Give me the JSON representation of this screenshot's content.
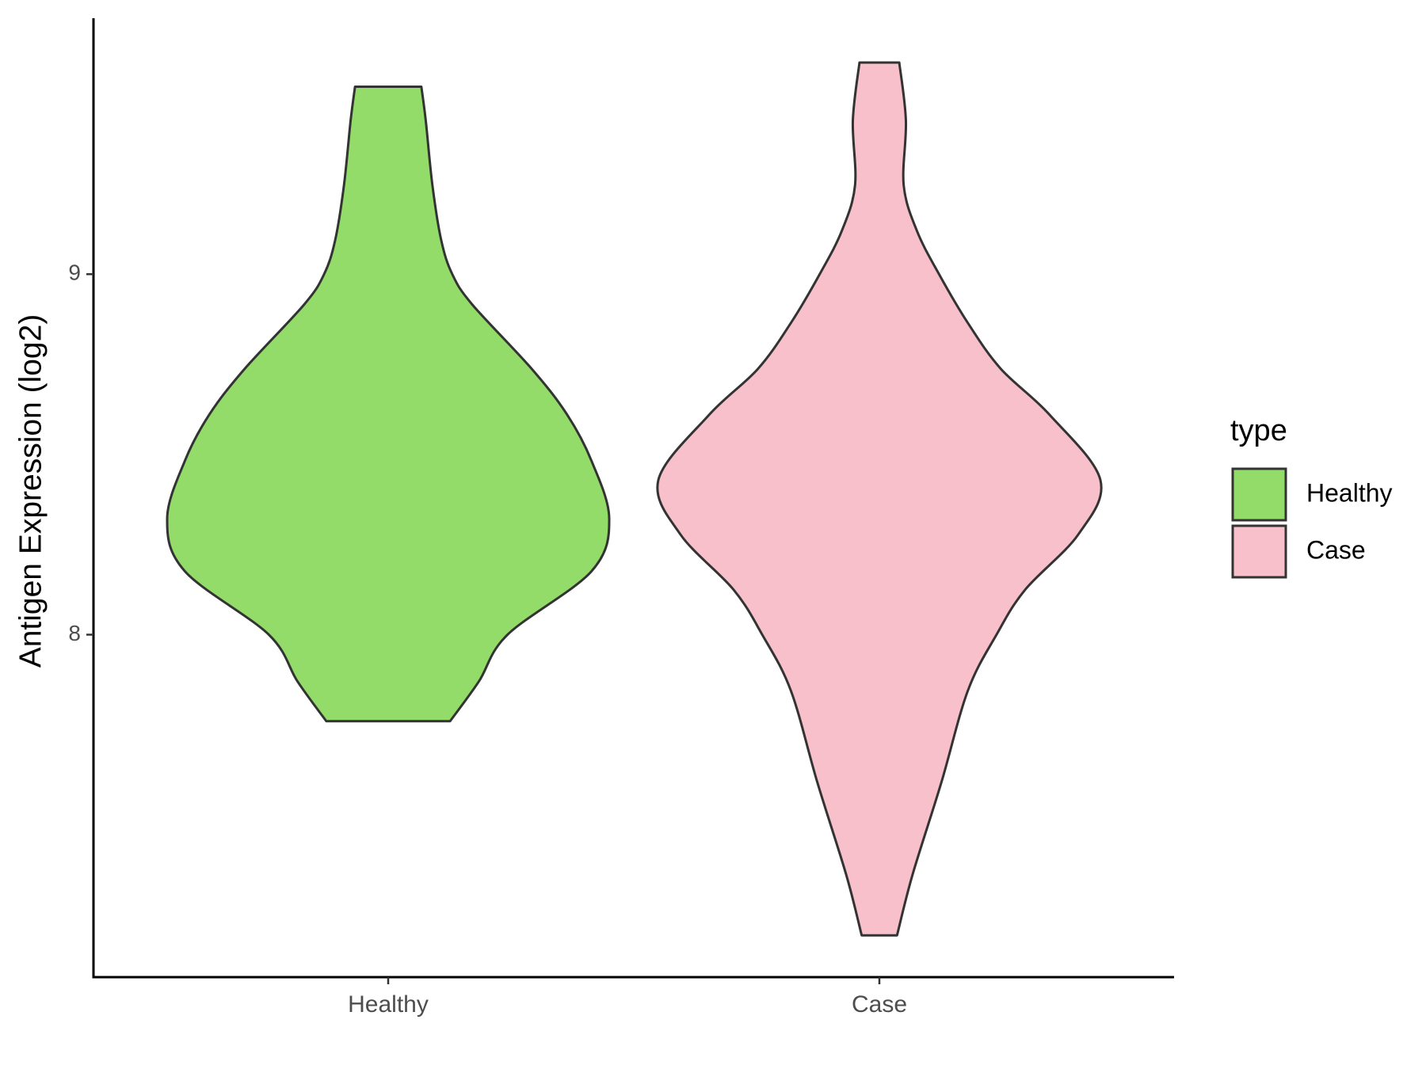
{
  "chart_data": {
    "type": "violin",
    "y_label": "Antigen Expression (log2)",
    "legend_title": "type",
    "categories": [
      "Healthy",
      "Case"
    ],
    "ylim": [
      7.05,
      9.71
    ],
    "yticks": [
      8,
      9
    ],
    "series": [
      {
        "name": "Healthy",
        "color": "#93dc6a",
        "y": [
          9.52,
          9.426,
          9.247,
          9.094,
          9.0,
          8.916,
          8.737,
          8.61,
          8.482,
          8.321,
          8.176,
          8.0,
          7.87,
          7.76
        ],
        "density": [
          0.15,
          0.17,
          0.2,
          0.24,
          0.29,
          0.38,
          0.65,
          0.81,
          0.92,
          1.0,
          0.92,
          0.54,
          0.41,
          0.28
        ]
      },
      {
        "name": "Case",
        "color": "#f7c0cb",
        "y": [
          9.587,
          9.426,
          9.247,
          9.12,
          9.0,
          8.865,
          8.737,
          8.61,
          8.429,
          8.278,
          8.125,
          8.0,
          7.844,
          7.589,
          7.334,
          7.166
        ],
        "density": [
          0.09,
          0.12,
          0.11,
          0.17,
          0.27,
          0.4,
          0.55,
          0.77,
          1.0,
          0.9,
          0.66,
          0.53,
          0.4,
          0.28,
          0.15,
          0.08
        ]
      }
    ]
  }
}
